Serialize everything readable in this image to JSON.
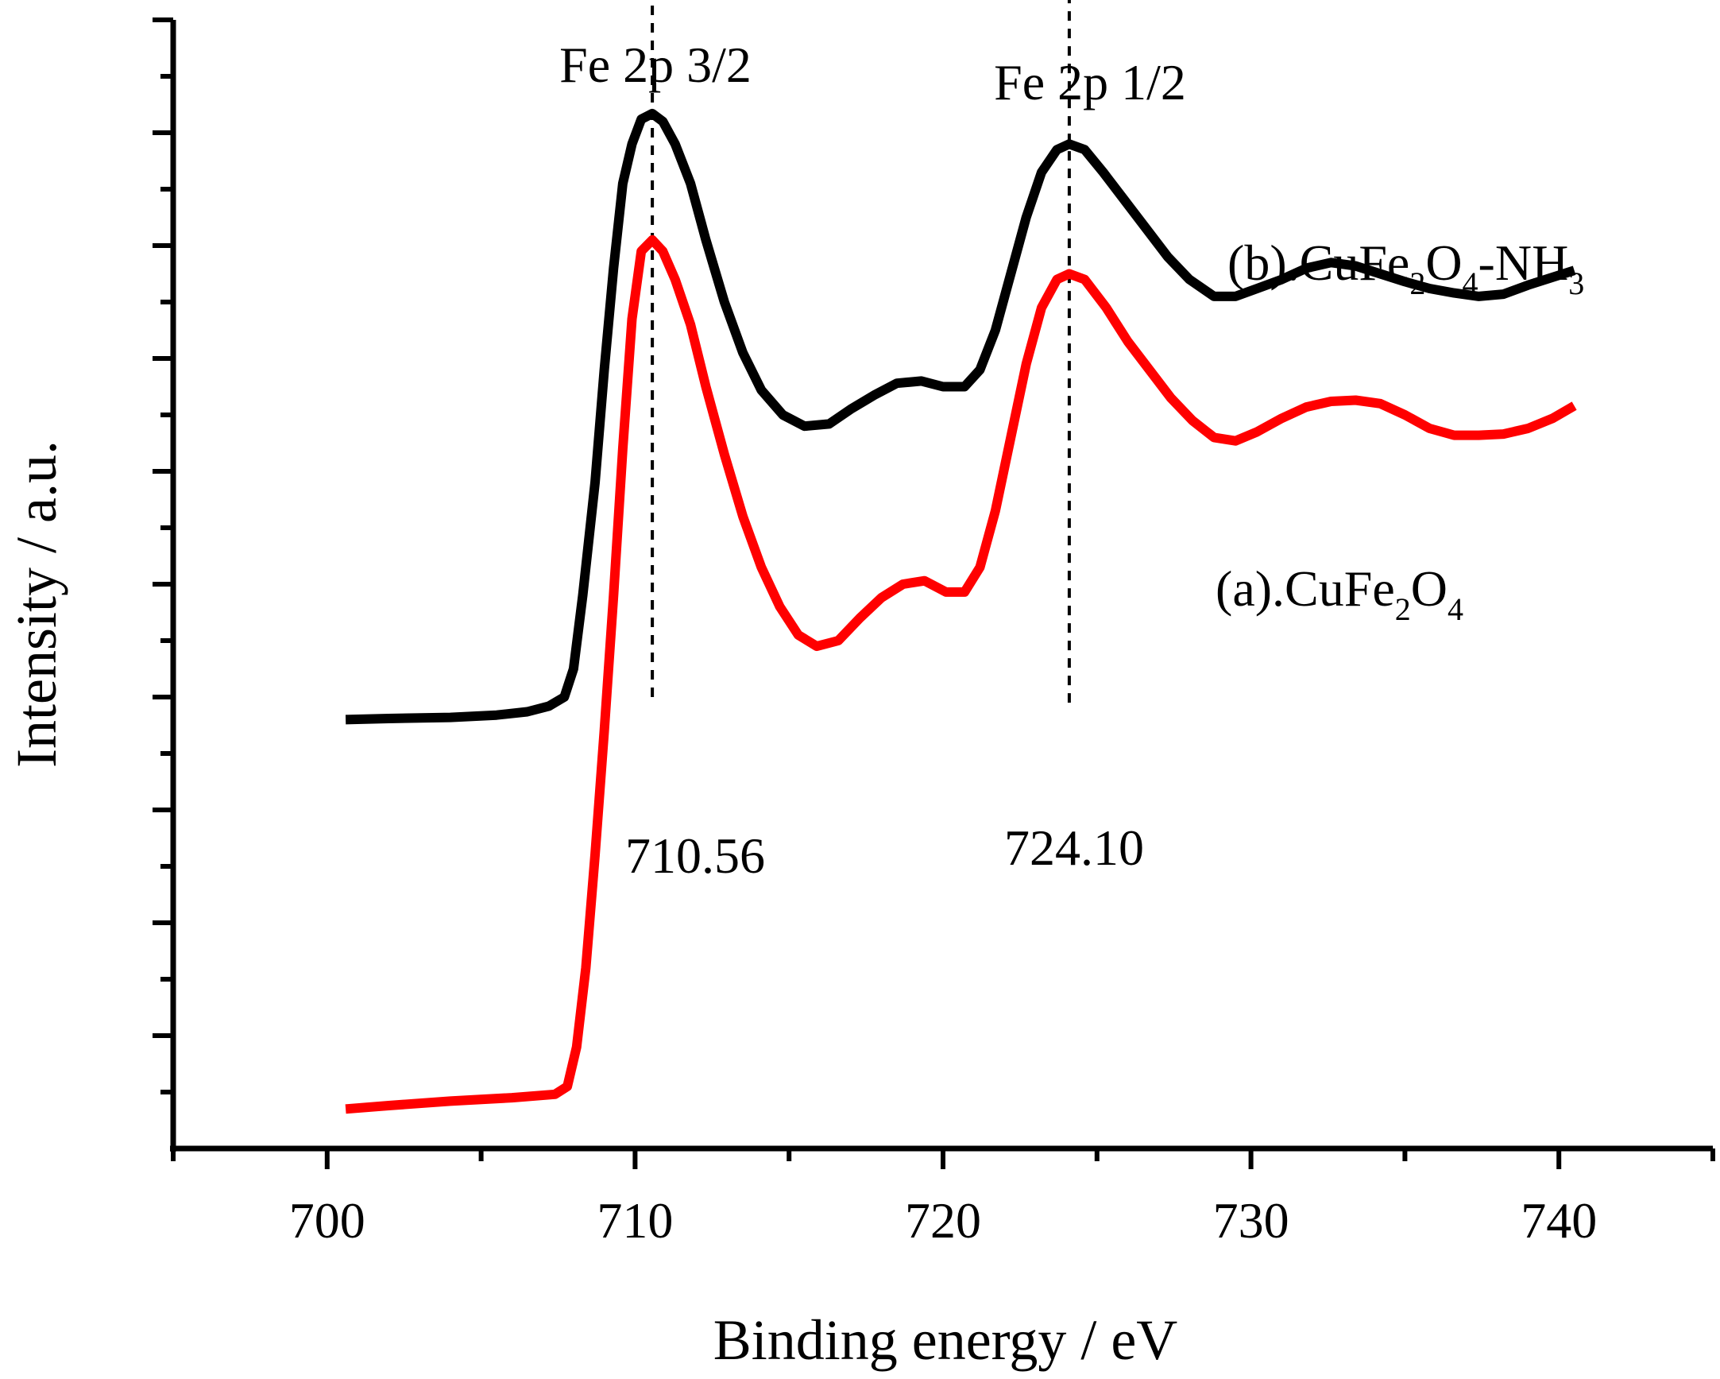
{
  "chart_data": {
    "type": "line",
    "title": "",
    "xlabel": "Binding energy / eV",
    "ylabel": "Intensity / a.u.",
    "xlim": [
      695,
      745
    ],
    "ylim": [
      0,
      10
    ],
    "x_ticks": [
      700,
      710,
      720,
      730,
      740
    ],
    "x_tick_labels": [
      "700",
      "710",
      "720",
      "730",
      "740"
    ],
    "y_tick_labels_shown": false,
    "legend": "inline labels at right",
    "series": [
      {
        "name": "(b).CuFe2O4-NH3",
        "label_parts": [
          "(b).CuFe",
          "2",
          "O",
          "4",
          "-NH",
          "3"
        ],
        "color": "#000000",
        "points": [
          [
            700.6,
            3.8
          ],
          [
            702,
            3.81
          ],
          [
            704,
            3.82
          ],
          [
            705.5,
            3.84
          ],
          [
            706.5,
            3.87
          ],
          [
            707.2,
            3.92
          ],
          [
            707.7,
            4.0
          ],
          [
            708.0,
            4.25
          ],
          [
            708.3,
            4.9
          ],
          [
            708.7,
            5.9
          ],
          [
            709.0,
            6.9
          ],
          [
            709.3,
            7.8
          ],
          [
            709.6,
            8.55
          ],
          [
            709.9,
            8.9
          ],
          [
            710.2,
            9.12
          ],
          [
            710.56,
            9.17
          ],
          [
            710.9,
            9.1
          ],
          [
            711.3,
            8.9
          ],
          [
            711.8,
            8.55
          ],
          [
            712.3,
            8.05
          ],
          [
            712.9,
            7.5
          ],
          [
            713.5,
            7.05
          ],
          [
            714.1,
            6.72
          ],
          [
            714.8,
            6.5
          ],
          [
            715.5,
            6.4
          ],
          [
            716.3,
            6.42
          ],
          [
            717.0,
            6.55
          ],
          [
            717.8,
            6.68
          ],
          [
            718.5,
            6.78
          ],
          [
            719.3,
            6.8
          ],
          [
            720.0,
            6.75
          ],
          [
            720.7,
            6.75
          ],
          [
            721.2,
            6.9
          ],
          [
            721.7,
            7.25
          ],
          [
            722.2,
            7.75
          ],
          [
            722.7,
            8.25
          ],
          [
            723.2,
            8.65
          ],
          [
            723.7,
            8.85
          ],
          [
            724.1,
            8.9
          ],
          [
            724.6,
            8.85
          ],
          [
            725.2,
            8.65
          ],
          [
            725.9,
            8.4
          ],
          [
            726.6,
            8.15
          ],
          [
            727.3,
            7.9
          ],
          [
            728.0,
            7.7
          ],
          [
            728.8,
            7.55
          ],
          [
            729.5,
            7.55
          ],
          [
            730.2,
            7.62
          ],
          [
            731.0,
            7.7
          ],
          [
            731.8,
            7.8
          ],
          [
            732.6,
            7.85
          ],
          [
            733.4,
            7.82
          ],
          [
            734.2,
            7.75
          ],
          [
            735.0,
            7.68
          ],
          [
            735.8,
            7.62
          ],
          [
            736.6,
            7.58
          ],
          [
            737.4,
            7.55
          ],
          [
            738.2,
            7.57
          ],
          [
            739.0,
            7.65
          ],
          [
            739.8,
            7.72
          ],
          [
            740.5,
            7.78
          ]
        ]
      },
      {
        "name": "(a).CuFe2O4",
        "label_parts": [
          "(a).CuFe",
          "2",
          "O",
          "4"
        ],
        "color": "#ff0000",
        "points": [
          [
            700.6,
            0.35
          ],
          [
            702,
            0.38
          ],
          [
            704,
            0.42
          ],
          [
            706,
            0.45
          ],
          [
            707.4,
            0.48
          ],
          [
            707.8,
            0.55
          ],
          [
            708.1,
            0.9
          ],
          [
            708.4,
            1.6
          ],
          [
            708.7,
            2.6
          ],
          [
            709.0,
            3.7
          ],
          [
            709.3,
            4.9
          ],
          [
            709.6,
            6.2
          ],
          [
            709.9,
            7.35
          ],
          [
            710.2,
            7.95
          ],
          [
            710.56,
            8.05
          ],
          [
            710.9,
            7.95
          ],
          [
            711.3,
            7.7
          ],
          [
            711.8,
            7.3
          ],
          [
            712.3,
            6.75
          ],
          [
            712.9,
            6.15
          ],
          [
            713.5,
            5.6
          ],
          [
            714.1,
            5.15
          ],
          [
            714.7,
            4.8
          ],
          [
            715.3,
            4.55
          ],
          [
            715.9,
            4.45
          ],
          [
            716.6,
            4.5
          ],
          [
            717.3,
            4.7
          ],
          [
            718.0,
            4.88
          ],
          [
            718.7,
            5.0
          ],
          [
            719.4,
            5.03
          ],
          [
            720.1,
            4.93
          ],
          [
            720.7,
            4.93
          ],
          [
            721.2,
            5.15
          ],
          [
            721.7,
            5.65
          ],
          [
            722.2,
            6.3
          ],
          [
            722.7,
            6.95
          ],
          [
            723.2,
            7.45
          ],
          [
            723.7,
            7.7
          ],
          [
            724.1,
            7.75
          ],
          [
            724.6,
            7.7
          ],
          [
            725.3,
            7.45
          ],
          [
            726.0,
            7.15
          ],
          [
            726.7,
            6.9
          ],
          [
            727.4,
            6.65
          ],
          [
            728.1,
            6.45
          ],
          [
            728.8,
            6.3
          ],
          [
            729.5,
            6.27
          ],
          [
            730.2,
            6.35
          ],
          [
            731.0,
            6.47
          ],
          [
            731.8,
            6.57
          ],
          [
            732.6,
            6.62
          ],
          [
            733.4,
            6.63
          ],
          [
            734.2,
            6.6
          ],
          [
            735.0,
            6.5
          ],
          [
            735.8,
            6.38
          ],
          [
            736.6,
            6.32
          ],
          [
            737.4,
            6.32
          ],
          [
            738.2,
            6.33
          ],
          [
            739.0,
            6.38
          ],
          [
            739.8,
            6.47
          ],
          [
            740.5,
            6.58
          ]
        ]
      }
    ],
    "annotations": [
      {
        "text": "Fe 2p 3/2",
        "x": 710.56
      },
      {
        "text": "Fe 2p 1/2",
        "x": 724.1
      }
    ],
    "peak_markers": [
      {
        "x": 710.56,
        "label": "710.56",
        "y_from": 4.0,
        "y_to": 10.55
      },
      {
        "x": 724.1,
        "label": "724.10",
        "y_from": 3.95,
        "y_to": 10.3
      }
    ]
  }
}
